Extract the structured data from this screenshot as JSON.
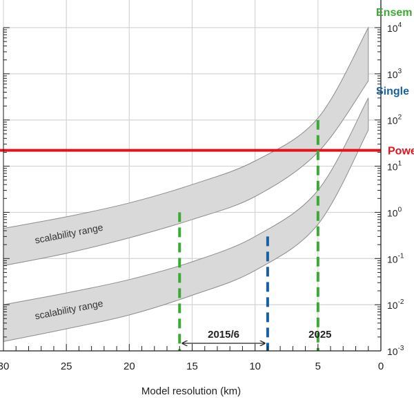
{
  "chart_data": {
    "type": "area",
    "xlabel": "Model resolution (km)",
    "xlim": [
      30,
      0
    ],
    "x_ticks": [
      "30",
      "25",
      "20",
      "15",
      "10",
      "5",
      "0"
    ],
    "x_tick_values": [
      30,
      25,
      20,
      15,
      10,
      5,
      0
    ],
    "ylim": [
      0.001,
      10000
    ],
    "y_scale": "log",
    "y_axis_side": "right",
    "y_ticks": [
      {
        "value": 10000,
        "base": "10",
        "exp": "4"
      },
      {
        "value": 1000,
        "base": "10",
        "exp": "3"
      },
      {
        "value": 100,
        "base": "10",
        "exp": "2"
      },
      {
        "value": 10,
        "base": "10",
        "exp": "1"
      },
      {
        "value": 1,
        "base": "10",
        "exp": "0"
      },
      {
        "value": 0.1,
        "base": "10",
        "exp": "-1"
      },
      {
        "value": 0.01,
        "base": "10",
        "exp": "-2"
      },
      {
        "value": 0.001,
        "base": "10",
        "exp": "-3"
      }
    ],
    "grid": true,
    "series": [
      {
        "name": "Ensem",
        "label_color": "#3aaa35",
        "band_label": "scalability range",
        "upper": [
          [
            30,
            0.45
          ],
          [
            25,
            0.8
          ],
          [
            20,
            1.6
          ],
          [
            15,
            4
          ],
          [
            10,
            13
          ],
          [
            5,
            110
          ],
          [
            1,
            10000
          ]
        ],
        "lower": [
          [
            30,
            0.07
          ],
          [
            25,
            0.13
          ],
          [
            20,
            0.28
          ],
          [
            15,
            0.7
          ],
          [
            10,
            2.2
          ],
          [
            5,
            20
          ],
          [
            1,
            700
          ]
        ]
      },
      {
        "name": "Single",
        "label_color": "#1a5fa0",
        "band_label": "scalability range",
        "upper": [
          [
            30,
            0.01
          ],
          [
            25,
            0.018
          ],
          [
            20,
            0.035
          ],
          [
            15,
            0.085
          ],
          [
            10,
            0.3
          ],
          [
            5,
            3
          ],
          [
            1,
            300
          ]
        ],
        "lower": [
          [
            30,
            0.0016
          ],
          [
            25,
            0.003
          ],
          [
            20,
            0.006
          ],
          [
            15,
            0.016
          ],
          [
            10,
            0.055
          ],
          [
            5,
            0.55
          ],
          [
            1,
            60
          ]
        ]
      }
    ],
    "reference_lines": [
      {
        "name": "Powe",
        "orientation": "horizontal",
        "value": 22,
        "color": "#e3131b"
      }
    ],
    "vertical_markers": [
      {
        "x": 16,
        "y_top": 1,
        "color": "#3aaa35"
      },
      {
        "x": 9,
        "y_top": 0.3,
        "color": "#1a5fa0"
      },
      {
        "x": 5,
        "y_top": 100,
        "color": "#3aaa35"
      }
    ],
    "annotations": [
      {
        "text": "2015/6",
        "type": "range-arrow",
        "x_from": 16,
        "x_to": 9,
        "y": 0.0018
      },
      {
        "text": "2025",
        "type": "text",
        "x": 5,
        "y": 0.0018
      }
    ]
  }
}
